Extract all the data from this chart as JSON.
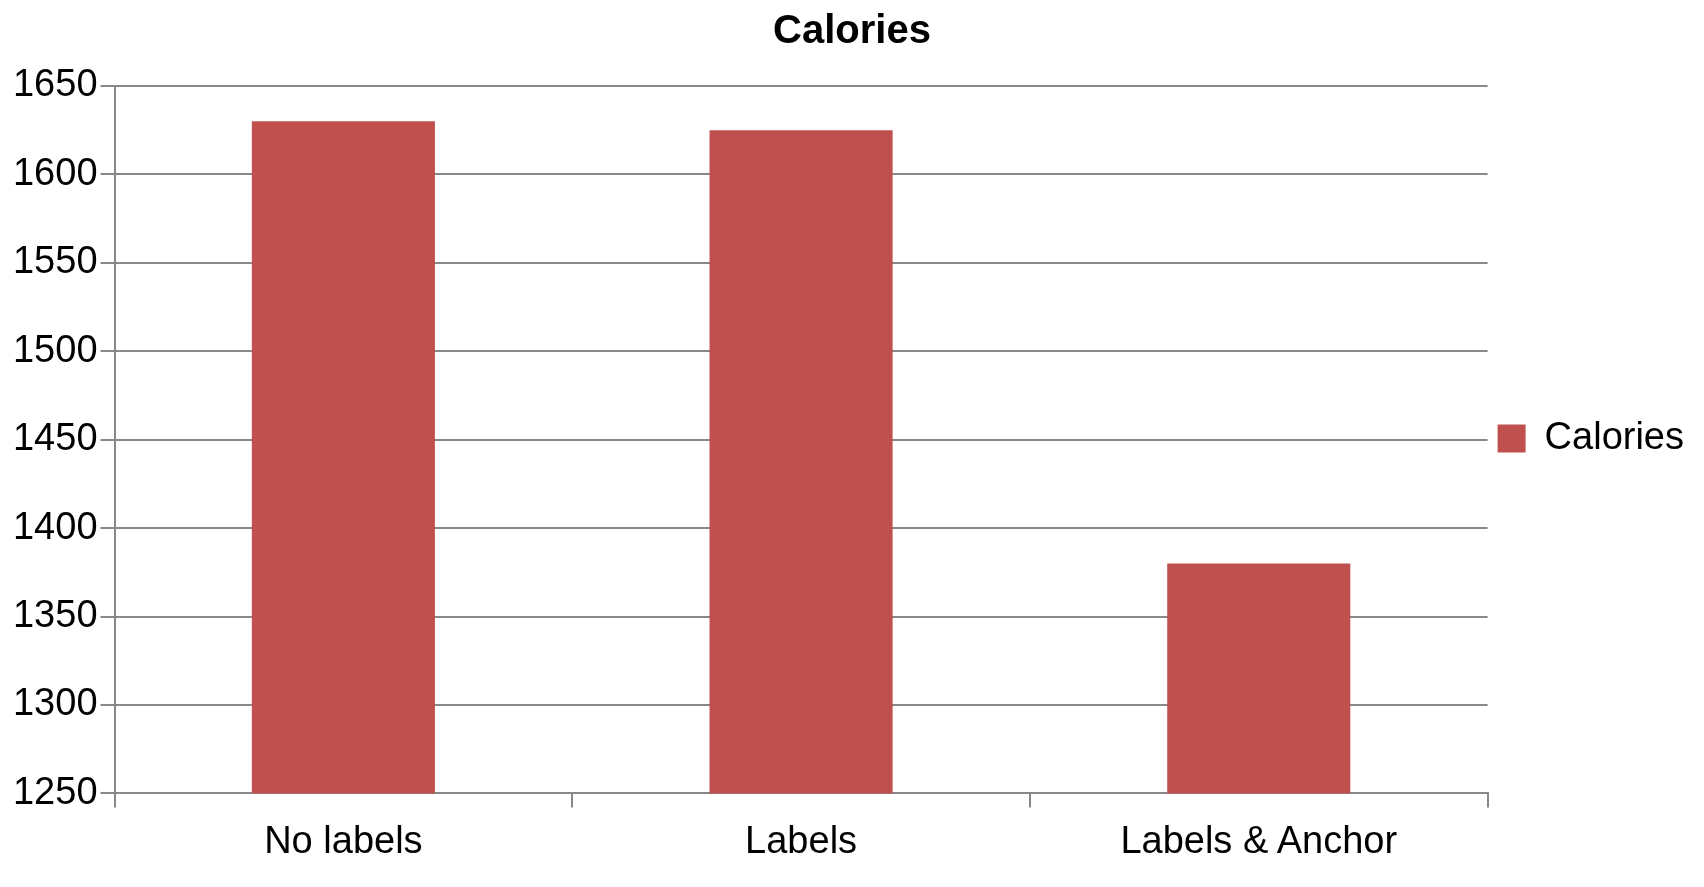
{
  "chart_data": {
    "type": "bar",
    "title": "Calories",
    "categories": [
      "No labels",
      "Labels",
      "Labels & Anchor"
    ],
    "series": [
      {
        "name": "Calories",
        "color": "#c0504d",
        "values": [
          1630,
          1625,
          1380
        ]
      }
    ],
    "ylim": [
      1250,
      1650
    ],
    "yticks": [
      1250,
      1300,
      1350,
      1400,
      1450,
      1500,
      1550,
      1600,
      1650
    ],
    "grid": "y",
    "legend": "right"
  }
}
